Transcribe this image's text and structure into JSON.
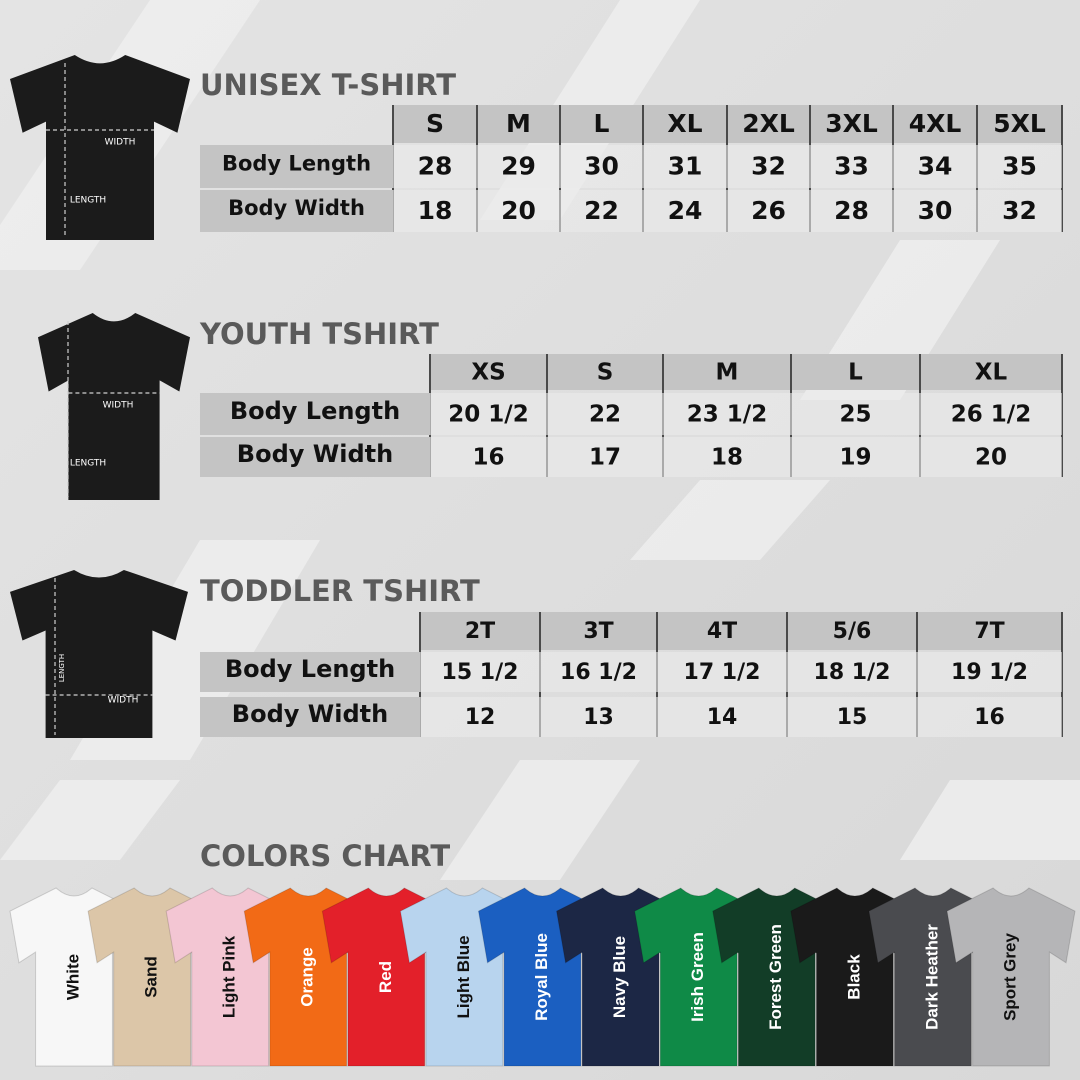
{
  "sections": [
    {
      "title": "UNISEX T-SHIRT",
      "diagram": {
        "width_label": "WIDTH",
        "length_label": "LENGTH"
      },
      "columns": [
        "S",
        "M",
        "L",
        "XL",
        "2XL",
        "3XL",
        "4XL",
        "5XL"
      ],
      "rows": [
        {
          "label": "Body Length",
          "values": [
            "28",
            "29",
            "30",
            "31",
            "32",
            "33",
            "34",
            "35"
          ]
        },
        {
          "label": "Body Width",
          "values": [
            "18",
            "20",
            "22",
            "24",
            "26",
            "28",
            "30",
            "32"
          ]
        }
      ]
    },
    {
      "title": "YOUTH TSHIRT",
      "diagram": {
        "width_label": "WIDTH",
        "length_label": "LENGTH"
      },
      "columns": [
        "XS",
        "S",
        "M",
        "L",
        "XL"
      ],
      "rows": [
        {
          "label": "Body Length",
          "values": [
            "20 1/2",
            "22",
            "23 1/2",
            "25",
            "26 1/2"
          ]
        },
        {
          "label": "Body Width",
          "values": [
            "16",
            "17",
            "18",
            "19",
            "20"
          ]
        }
      ]
    },
    {
      "title": "TODDLER TSHIRT",
      "diagram": {
        "width_label": "WIDTH",
        "length_label": "LENGTH"
      },
      "columns": [
        "2T",
        "3T",
        "4T",
        "5/6",
        "7T"
      ],
      "rows": [
        {
          "label": "Body Length",
          "values": [
            "15 1/2",
            "16 1/2",
            "17 1/2",
            "18 1/2",
            "19 1/2"
          ]
        },
        {
          "label": "Body Width",
          "values": [
            "12",
            "13",
            "14",
            "15",
            "16"
          ]
        }
      ]
    }
  ],
  "colors_chart": {
    "title": "COLORS CHART",
    "colors": [
      {
        "name": "White",
        "color": "#f7f7f7"
      },
      {
        "name": "Sand",
        "color": "#dcc6a8"
      },
      {
        "name": "Light Pink",
        "color": "#f3c6d3"
      },
      {
        "name": "Orange",
        "color": "#f26a16"
      },
      {
        "name": "Red",
        "color": "#e3202a"
      },
      {
        "name": "Light Blue",
        "color": "#b8d4ee"
      },
      {
        "name": "Royal Blue",
        "color": "#1b5fc1"
      },
      {
        "name": "Navy Blue",
        "color": "#1c2745"
      },
      {
        "name": "Irish Green",
        "color": "#0f8a47"
      },
      {
        "name": "Forest Green",
        "color": "#123d27"
      },
      {
        "name": "Black",
        "color": "#1a1a1a"
      },
      {
        "name": "Dark Heather",
        "color": "#4a4b4f"
      },
      {
        "name": "Sport Grey",
        "color": "#b5b5b7"
      }
    ]
  }
}
